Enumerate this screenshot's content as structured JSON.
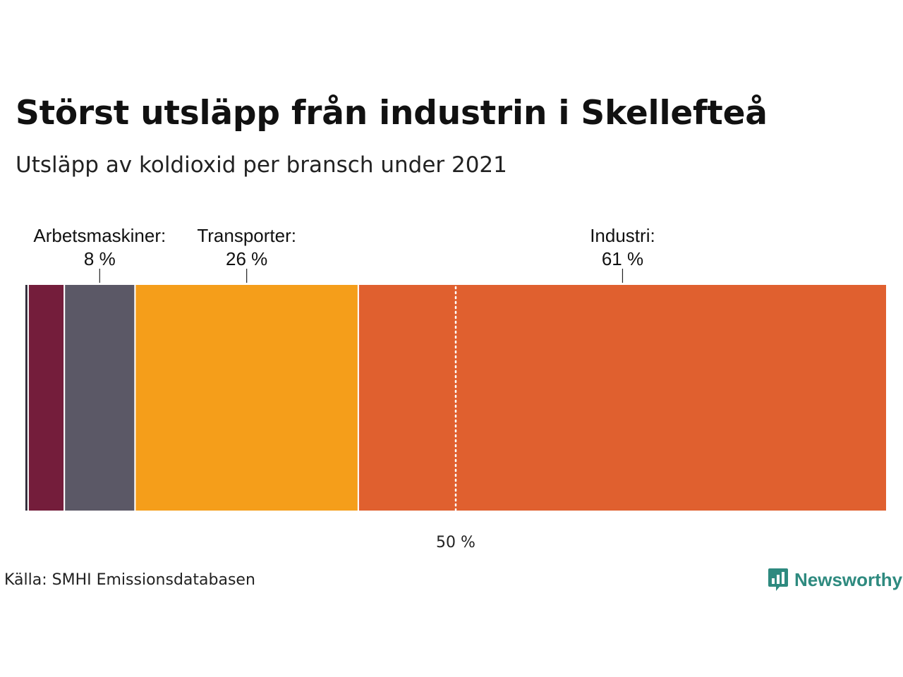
{
  "header": {
    "title": "Störst utsläpp från industrin i Skellefteå",
    "subtitle": "Utsläpp av koldioxid per bransch under 2021"
  },
  "footer": {
    "source": "Källa: SMHI Emissionsdatabasen",
    "brand": "Newsworthy"
  },
  "chart_data": {
    "type": "bar",
    "orientation": "horizontal-stacked-100",
    "title": "Störst utsläpp från industrin i Skellefteå",
    "subtitle": "Utsläpp av koldioxid per bransch under 2021",
    "xlim": [
      0,
      100
    ],
    "unit": "%",
    "series": [
      {
        "value": 0.4,
        "color": "#2b2633",
        "labeled": false
      },
      {
        "value": 4.2,
        "color": "#741d3b",
        "labeled": false
      },
      {
        "name": "Arbetsmaskiner:",
        "label": "8 %",
        "value": 8.2,
        "color": "#5b5866",
        "labeled": true
      },
      {
        "name": "Transporter:",
        "label": "26 %",
        "value": 25.9,
        "color": "#f59e1a",
        "labeled": true
      },
      {
        "name": "Industri:",
        "label": "61 %",
        "value": 61.3,
        "color": "#e0602f",
        "labeled": true
      }
    ],
    "reference_line": {
      "value": 50,
      "label": "50 %",
      "style": "dotted",
      "color": "#ffffff"
    }
  },
  "colors": {
    "brand": "#2e8a7f",
    "background": "#ffffff"
  },
  "icons": {
    "brand_logo": "newsworthy-chart-bubble-icon"
  }
}
